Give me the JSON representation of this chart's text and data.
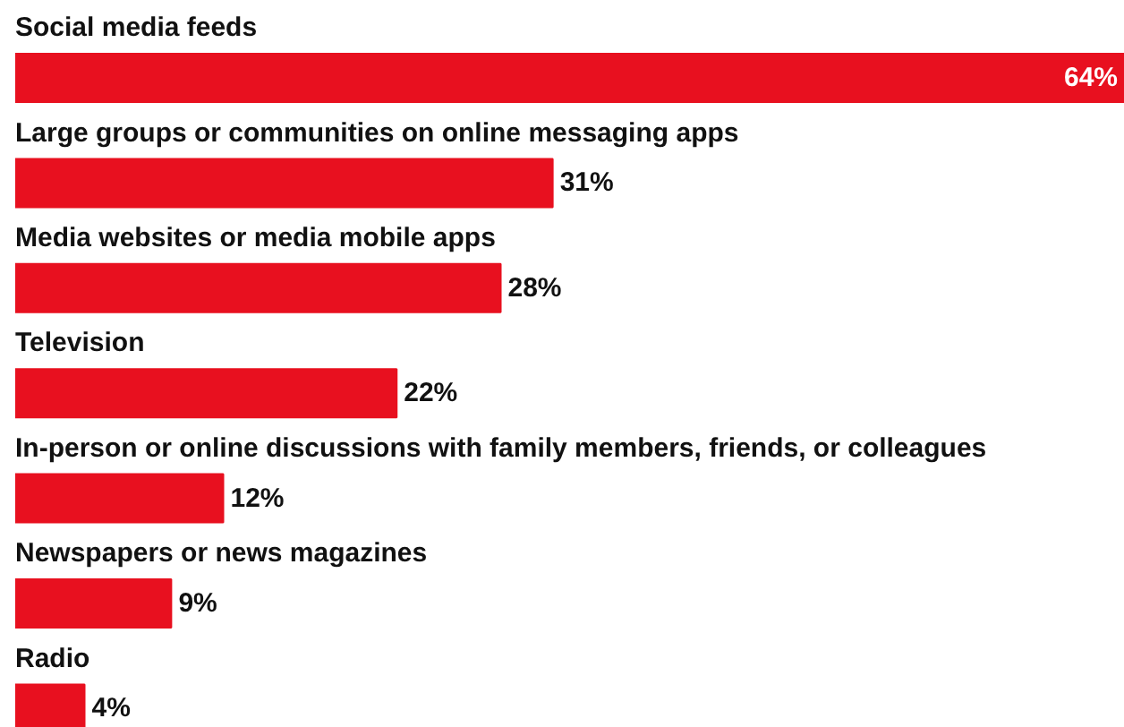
{
  "chart_data": {
    "type": "bar",
    "orientation": "horizontal",
    "categories": [
      "Social media feeds",
      "Large groups or communities on online messaging apps",
      "Media websites or media mobile apps",
      "Television",
      "In-person or online discussions with family members, friends, or colleagues",
      "Newspapers or news magazines",
      "Radio"
    ],
    "values": [
      64,
      31,
      28,
      22,
      12,
      9,
      4
    ],
    "color": "#e8101f",
    "data_labels": true,
    "value_labels": [
      "64%",
      "31%",
      "28%",
      "22%",
      "12%",
      "9%",
      "4%"
    ]
  }
}
